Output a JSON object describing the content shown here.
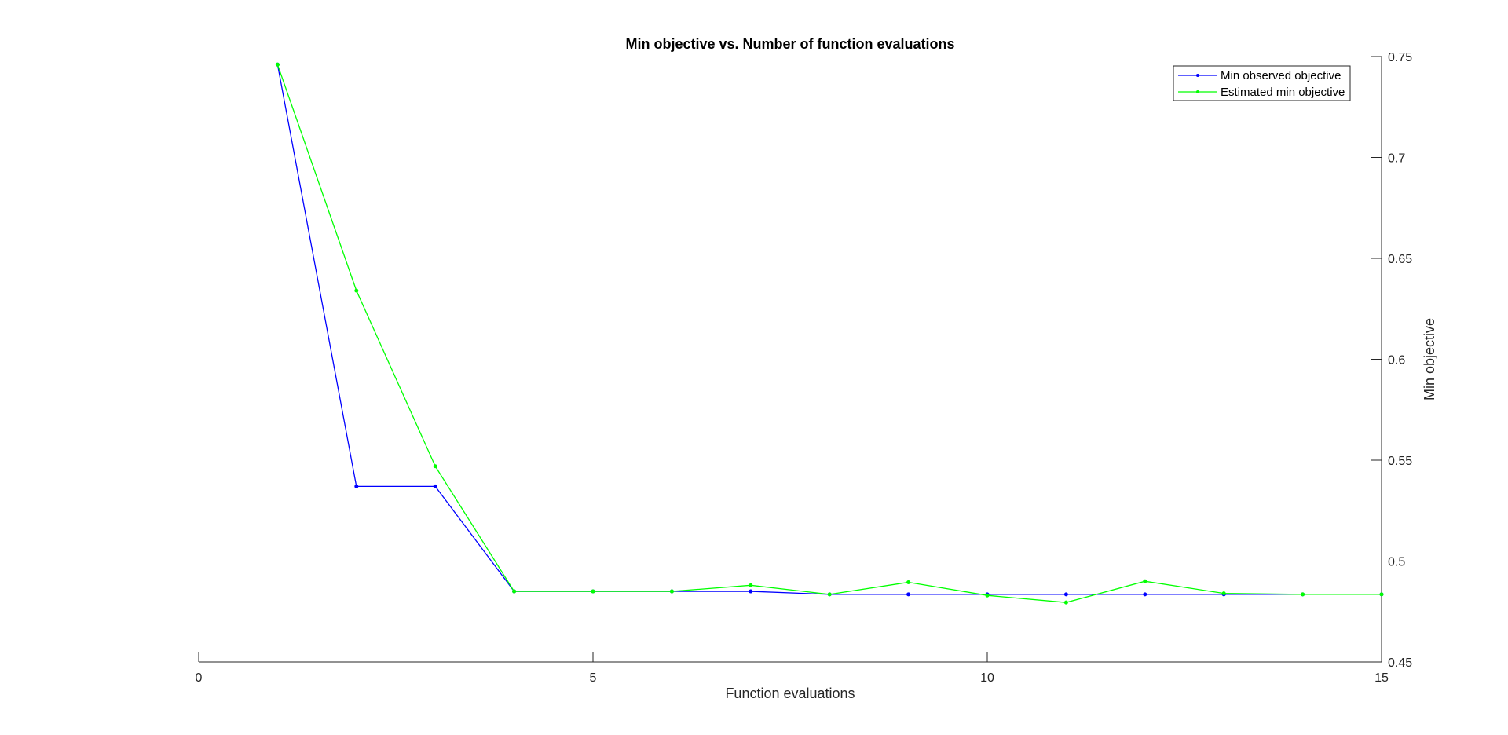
{
  "chart_data": {
    "type": "line",
    "title": "Min objective vs. Number of function evaluations",
    "xlabel": "Function evaluations",
    "ylabel": "Min objective",
    "xlim": [
      0,
      15
    ],
    "ylim": [
      0.45,
      0.75
    ],
    "xticks": [
      0,
      5,
      10,
      15
    ],
    "xtick_labels": [
      "0",
      "5",
      "10",
      "15"
    ],
    "yticks": [
      0.45,
      0.5,
      0.55,
      0.6,
      0.65,
      0.7,
      0.75
    ],
    "ytick_labels": [
      "0.45",
      "0.5",
      "0.55",
      "0.6",
      "0.65",
      "0.7",
      "0.75"
    ],
    "y_axis_location": "right",
    "grid": false,
    "legend_position": "top-right",
    "series": [
      {
        "name": "Min observed objective",
        "color": "#0000ff",
        "marker": "dot",
        "x": [
          1,
          2,
          3,
          4,
          5,
          6,
          7,
          8,
          9,
          10,
          11,
          12,
          13,
          14,
          15
        ],
        "y": [
          0.746,
          0.537,
          0.537,
          0.485,
          0.485,
          0.485,
          0.485,
          0.4835,
          0.4835,
          0.4835,
          0.4835,
          0.4835,
          0.4835,
          0.4835,
          0.4835
        ]
      },
      {
        "name": "Estimated min objective",
        "color": "#00ff00",
        "marker": "dot",
        "x": [
          1,
          2,
          3,
          4,
          5,
          6,
          7,
          8,
          9,
          10,
          11,
          12,
          13,
          14,
          15
        ],
        "y": [
          0.746,
          0.634,
          0.547,
          0.485,
          0.485,
          0.485,
          0.488,
          0.4835,
          0.4895,
          0.483,
          0.4795,
          0.49,
          0.484,
          0.4835,
          0.4835
        ]
      }
    ]
  }
}
